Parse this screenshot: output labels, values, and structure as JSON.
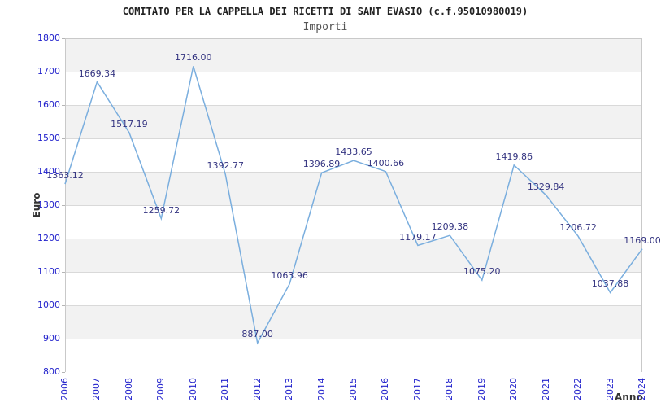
{
  "header": {
    "title": "COMITATO PER LA CAPPELLA DEI RICETTI DI SANT EVASIO (c.f.95010980019)",
    "subtitle": "Importi"
  },
  "chart_data": {
    "type": "line",
    "title": "COMITATO PER LA CAPPELLA DEI RICETTI DI SANT EVASIO (c.f.95010980019)",
    "subtitle": "Importi",
    "xlabel": "Anno",
    "ylabel": "Euro",
    "x": [
      2006,
      2007,
      2008,
      2009,
      2010,
      2011,
      2012,
      2013,
      2014,
      2015,
      2016,
      2017,
      2018,
      2019,
      2020,
      2021,
      2022,
      2023,
      2024
    ],
    "values": [
      1363.12,
      1669.34,
      1517.19,
      1259.72,
      1716.0,
      1392.77,
      887.0,
      1063.96,
      1396.89,
      1433.65,
      1400.66,
      1179.17,
      1209.38,
      1075.2,
      1419.86,
      1329.84,
      1206.72,
      1037.88,
      1169.0
    ],
    "point_labels": [
      "1363.12",
      "1669.34",
      "1517.19",
      "1259.72",
      "1716.00",
      "1392.77",
      "887.00",
      "1063.96",
      "1396.89",
      "1433.65",
      "1400.66",
      "1179.17",
      "1209.38",
      "1075.20",
      "1419.86",
      "1329.84",
      "1206.72",
      "1037.88",
      "1169.00"
    ],
    "ylim": [
      800,
      1800
    ],
    "ytick_step": 100,
    "grid": "horizontal-bands",
    "legend": "none"
  },
  "colors": {
    "line": "#7aaede",
    "tick_label": "#2323cc",
    "data_label": "#333380",
    "band": "#f2f2f2",
    "gridline": "#d9d9d9",
    "border": "#c9c9c9",
    "title": "#222222",
    "subtitle": "#555555",
    "axis_label": "#333333"
  }
}
